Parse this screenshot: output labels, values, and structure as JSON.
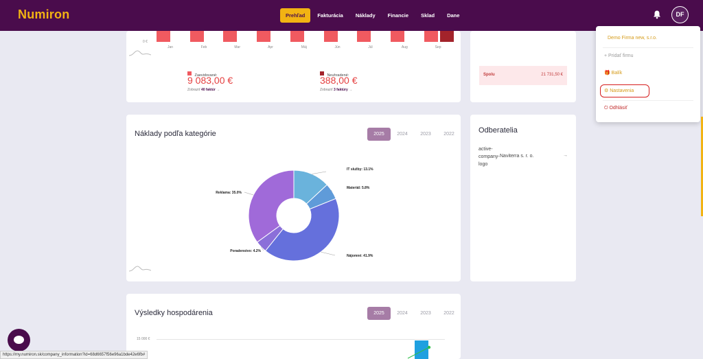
{
  "app": {
    "name": "Numiron"
  },
  "nav": {
    "items": [
      "Prehľad",
      "Fakturácia",
      "Náklady",
      "Financie",
      "Sklad",
      "Dane"
    ],
    "active_index": 0
  },
  "header": {
    "avatar_initials": "DF"
  },
  "invoices_chart": {
    "months": [
      "Jan",
      "Feb",
      "Mar",
      "Apr",
      "Máj",
      "Jún",
      "Júl",
      "Aug",
      "Sep"
    ],
    "zero_label": "0 €",
    "legend": [
      {
        "label": "Zaevidované:",
        "color": "#f05a60",
        "value": "9 083,00 €",
        "view_prefix": "Zobraziť",
        "view_link": "40 faktúr",
        "arrow": "→"
      },
      {
        "label": "Neuhradené:",
        "color": "#a3232b",
        "value": "388,00 €",
        "view_prefix": "Zobraziť",
        "view_link": "3 faktúry",
        "arrow": "→"
      }
    ]
  },
  "summary": {
    "label": "Spolu",
    "value": "21 731,50 €"
  },
  "costs": {
    "title": "Náklady podľa kategórie",
    "years": [
      "2025",
      "2024",
      "2023",
      "2022"
    ],
    "active_year": "2025"
  },
  "chart_data": {
    "type": "pie",
    "donut": true,
    "slices": [
      {
        "label": "IT služby: 13.1%",
        "value": 13.1,
        "color": "#6ab3dc"
      },
      {
        "label": "Materiál: 5.8%",
        "value": 5.8,
        "color": "#5f9bd9"
      },
      {
        "label": "Nájomné: 41.9%",
        "value": 41.9,
        "color": "#6570dc"
      },
      {
        "label": "Poradenstvo: 4.2%",
        "value": 4.2,
        "color": "#8b6fd9"
      },
      {
        "label": "Reklama: 35.0%",
        "value": 35.0,
        "color": "#a06ad9"
      }
    ]
  },
  "customers": {
    "title": "Odberatelia",
    "logo_alt": "active-company-logo",
    "logo_lines": [
      "active-",
      "company-",
      "logo"
    ],
    "name": "Naviterra s. r. o.",
    "arrow": "→"
  },
  "results": {
    "title": "Výsledky hospodárenia",
    "years": [
      "2025",
      "2024",
      "2023",
      "2022"
    ],
    "active_year": "2025",
    "y_label": "15 000 €"
  },
  "dropdown": {
    "company": "Demo Firma new, s.r.o.",
    "add_company": "Pridať firmu",
    "package": "Balík",
    "settings": "Nastavenia",
    "logout": "Odhlásiť"
  },
  "status_url": "https://my.numiron.sk/company_information?id=68d6657f56e96a1bde42e6fb#",
  "colors": {
    "brand": "#4a0c4c",
    "accent": "#f2b313",
    "danger": "#e54040"
  }
}
